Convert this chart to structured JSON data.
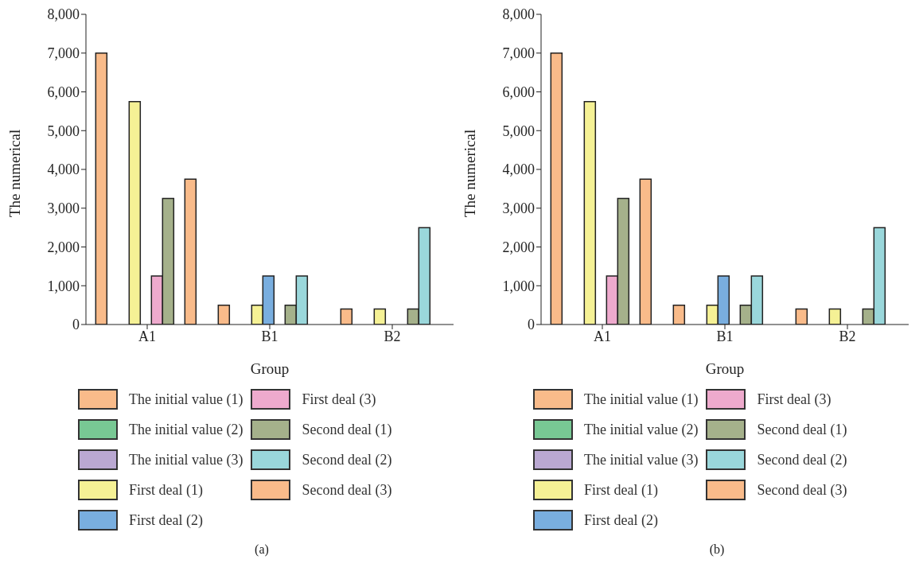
{
  "chart_data": [
    {
      "type": "bar",
      "categories": [
        "A1",
        "B1",
        "B2"
      ],
      "xlabel": "Group",
      "ylabel": "The numerical",
      "ylim": [
        0,
        8000
      ],
      "yticks": [
        {
          "value": 0,
          "label": "0"
        },
        {
          "value": 1000,
          "label": "1,000"
        },
        {
          "value": 2000,
          "label": "2,000"
        },
        {
          "value": 3000,
          "label": "3,000"
        },
        {
          "value": 4000,
          "label": "4,000"
        },
        {
          "value": 5000,
          "label": "5,000"
        },
        {
          "value": 6000,
          "label": "6,000"
        },
        {
          "value": 7000,
          "label": "7,000"
        },
        {
          "value": 8000,
          "label": "8,000"
        }
      ],
      "grid": false,
      "legend": "bottom",
      "annotations": [
        "(a)"
      ],
      "series": [
        {
          "name": "The initial value (1)",
          "color": "#f9bb8a",
          "values": [
            7000,
            500,
            400
          ]
        },
        {
          "name": "The initial value (2)",
          "color": "#78c894",
          "values": [
            0,
            0,
            0
          ]
        },
        {
          "name": "The initial value (3)",
          "color": "#baa8d2",
          "values": [
            0,
            0,
            0
          ]
        },
        {
          "name": "First deal (1)",
          "color": "#f5f195",
          "values": [
            5750,
            500,
            400
          ]
        },
        {
          "name": "First deal (2)",
          "color": "#79aedf",
          "values": [
            0,
            1250,
            0
          ]
        },
        {
          "name": "First deal (3)",
          "color": "#eeaacd",
          "values": [
            1250,
            0,
            0
          ]
        },
        {
          "name": "Second deal (1)",
          "color": "#a5b18b",
          "values": [
            3250,
            500,
            400
          ]
        },
        {
          "name": "Second deal (2)",
          "color": "#9ad7db",
          "values": [
            0,
            1250,
            2500
          ]
        },
        {
          "name": "Second deal (3)",
          "color": "#f9bb8a",
          "values": [
            3750,
            0,
            0
          ]
        }
      ]
    },
    {
      "type": "bar",
      "categories": [
        "A1",
        "B1",
        "B2"
      ],
      "xlabel": "Group",
      "ylabel": "The numerical",
      "ylim": [
        0,
        8000
      ],
      "yticks": [
        {
          "value": 0,
          "label": "0"
        },
        {
          "value": 1000,
          "label": "1,000"
        },
        {
          "value": 2000,
          "label": "2,000"
        },
        {
          "value": 3000,
          "label": "3,000"
        },
        {
          "value": 4000,
          "label": "4,000"
        },
        {
          "value": 5000,
          "label": "5,000"
        },
        {
          "value": 6000,
          "label": "6,000"
        },
        {
          "value": 7000,
          "label": "7,000"
        },
        {
          "value": 8000,
          "label": "8,000"
        }
      ],
      "grid": false,
      "legend": "bottom",
      "annotations": [
        "(b)"
      ],
      "series": [
        {
          "name": "The initial value (1)",
          "color": "#f9bb8a",
          "values": [
            7000,
            500,
            400
          ]
        },
        {
          "name": "The initial value (2)",
          "color": "#78c894",
          "values": [
            0,
            0,
            0
          ]
        },
        {
          "name": "The initial value (3)",
          "color": "#baa8d2",
          "values": [
            0,
            0,
            0
          ]
        },
        {
          "name": "First deal (1)",
          "color": "#f5f195",
          "values": [
            5750,
            500,
            400
          ]
        },
        {
          "name": "First deal (2)",
          "color": "#79aedf",
          "values": [
            0,
            1250,
            0
          ]
        },
        {
          "name": "First deal (3)",
          "color": "#eeaacd",
          "values": [
            1250,
            0,
            0
          ]
        },
        {
          "name": "Second deal (1)",
          "color": "#a5b18b",
          "values": [
            3250,
            500,
            400
          ]
        },
        {
          "name": "Second deal (2)",
          "color": "#9ad7db",
          "values": [
            0,
            1250,
            2500
          ]
        },
        {
          "name": "Second deal (3)",
          "color": "#f9bb8a",
          "values": [
            3750,
            0,
            0
          ]
        }
      ]
    }
  ]
}
